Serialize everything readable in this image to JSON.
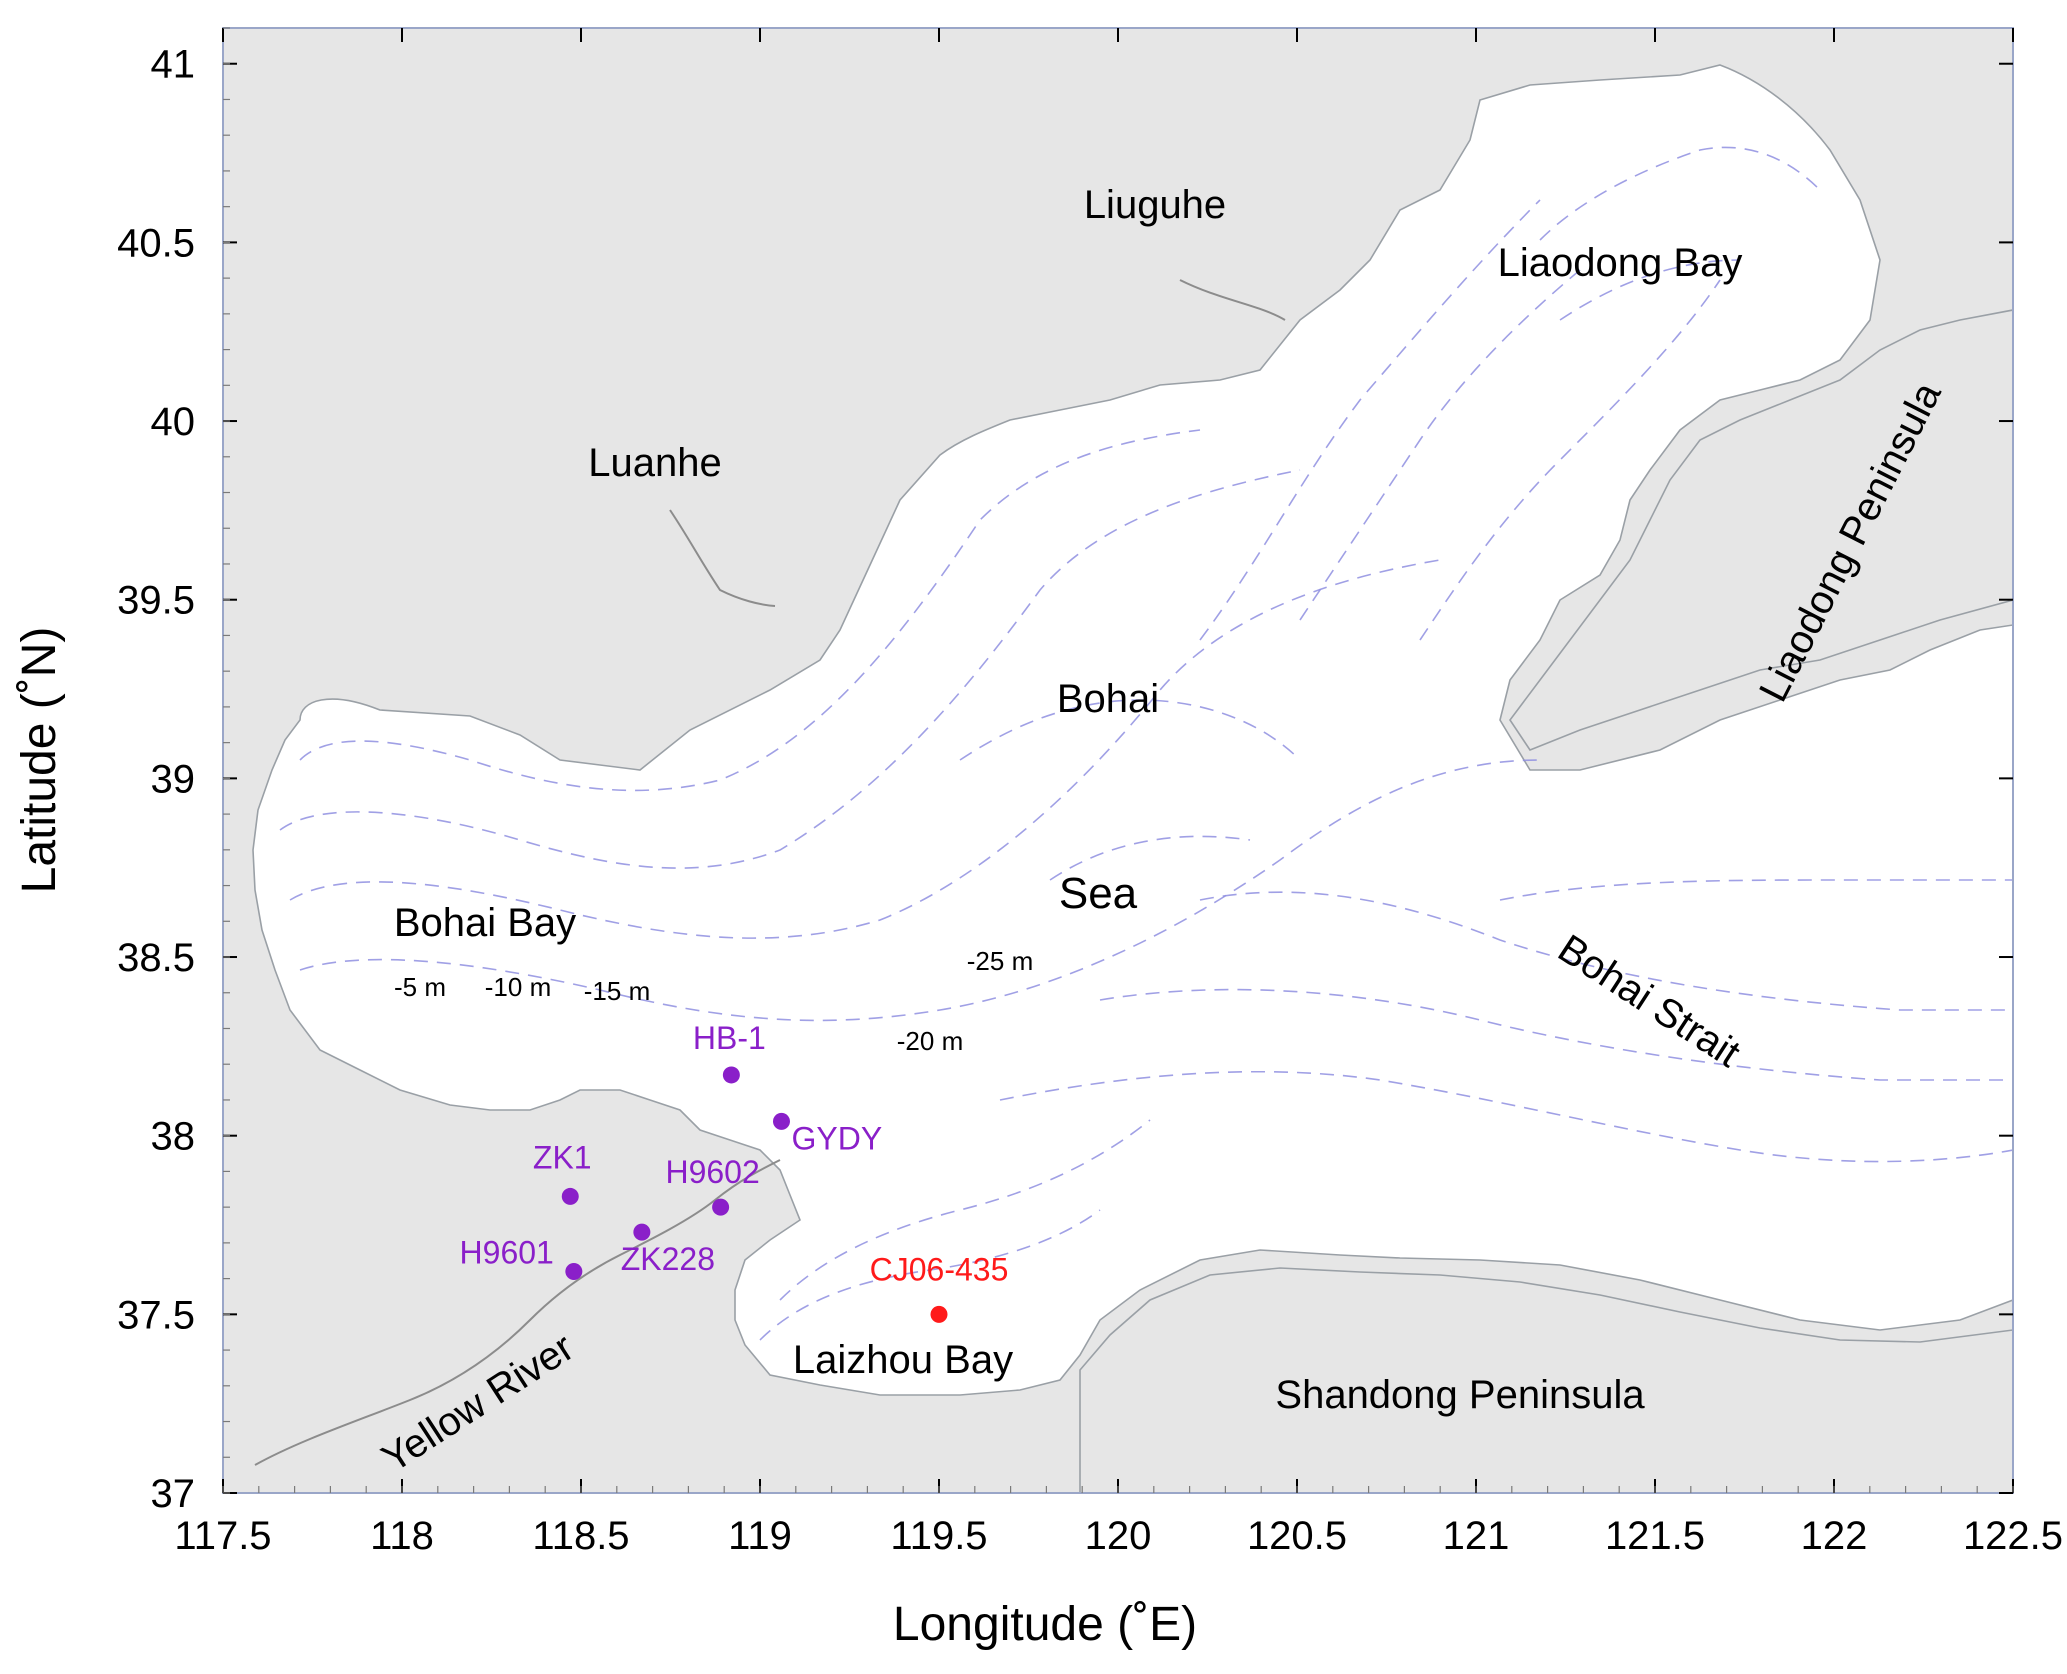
{
  "map": {
    "xaxis": {
      "label": "Longitude (˚E)",
      "range": [
        117.5,
        122.5
      ],
      "ticks": [
        "117.5",
        "118",
        "118.5",
        "119",
        "119.5",
        "120",
        "120.5",
        "121",
        "121.5",
        "122",
        "122.5"
      ]
    },
    "yaxis": {
      "label": "Latitude (˚N)",
      "range": [
        37,
        41.1
      ],
      "ticks": [
        "37",
        "37.5",
        "38",
        "38.5",
        "39",
        "39.5",
        "40",
        "40.5",
        "41"
      ]
    },
    "regions": {
      "liuguhe": "Liuguhe",
      "liaodong_bay": "Liaodong Bay",
      "luanhe": "Luanhe",
      "liaodong_peninsula": "Liaodong  Peninsula",
      "bohai": "Bohai",
      "sea": "Sea",
      "bohai_bay": "Bohai Bay",
      "bohai_strait": "Bohai  Strait",
      "laizhou_bay": "Laizhou Bay",
      "shandong_peninsula": "Shandong  Peninsula",
      "yellow_river": "Yellow River"
    },
    "depth_contours": [
      "-5 m",
      "-10 m",
      "-15 m",
      "-20 m",
      "-25 m"
    ],
    "stations": [
      {
        "id": "HB-1",
        "lon": 118.92,
        "lat": 38.17,
        "color": "#8a1fc9"
      },
      {
        "id": "GYDY",
        "lon": 119.06,
        "lat": 38.04,
        "color": "#8a1fc9"
      },
      {
        "id": "ZK1",
        "lon": 118.47,
        "lat": 37.83,
        "color": "#8a1fc9"
      },
      {
        "id": "H9602",
        "lon": 118.89,
        "lat": 37.8,
        "color": "#8a1fc9"
      },
      {
        "id": "ZK228",
        "lon": 118.67,
        "lat": 37.73,
        "color": "#8a1fc9"
      },
      {
        "id": "H9601",
        "lon": 118.48,
        "lat": 37.62,
        "color": "#8a1fc9"
      },
      {
        "id": "CJ06-435",
        "lon": 119.5,
        "lat": 37.5,
        "color": "#ff1a1a"
      }
    ],
    "colors": {
      "land": "#e6e6e6",
      "sea": "#ffffff",
      "contour": "#8f8fe0",
      "frame": "#9aa6c8"
    }
  }
}
